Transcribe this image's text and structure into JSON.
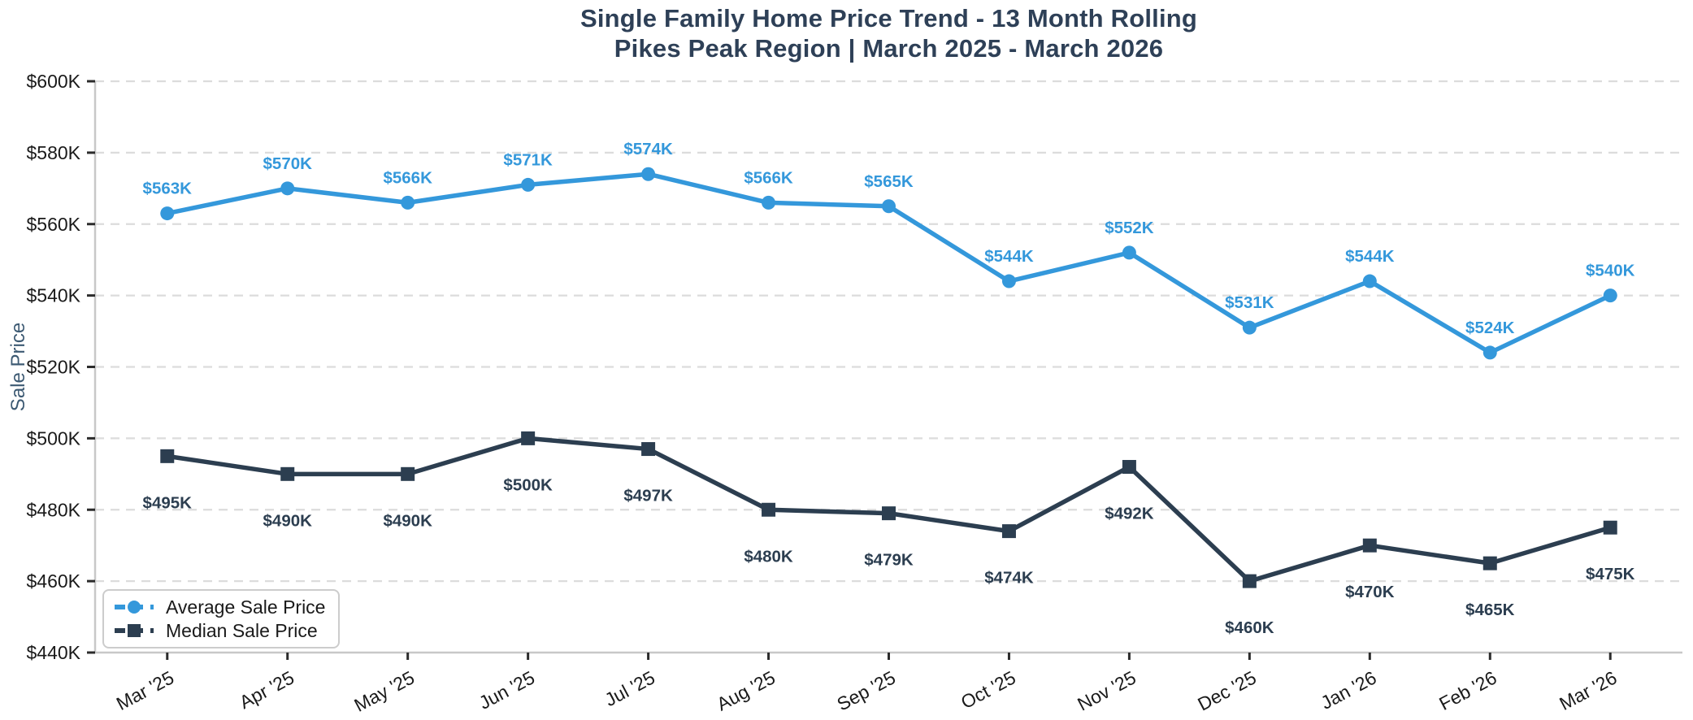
{
  "title": {
    "line1": "Single Family Home Price Trend - 13 Month Rolling",
    "line2": "Pikes Peak Region | March 2025 - March 2026"
  },
  "y_axis": {
    "label": "Sale Price",
    "tick_labels": [
      "$440K",
      "$460K",
      "$480K",
      "$500K",
      "$520K",
      "$540K",
      "$560K",
      "$580K",
      "$600K"
    ],
    "tick_values": [
      440,
      460,
      480,
      500,
      520,
      540,
      560,
      580,
      600
    ]
  },
  "x_axis": {
    "tick_labels": [
      "Mar '25",
      "Apr '25",
      "May '25",
      "Jun '25",
      "Jul '25",
      "Aug '25",
      "Sep '25",
      "Oct '25",
      "Nov '25",
      "Dec '25",
      "Jan '26",
      "Feb '26",
      "Mar '26"
    ]
  },
  "legend": {
    "entries": [
      "Average Sale Price",
      "Median Sale Price"
    ],
    "position": "lower-left"
  },
  "colors": {
    "average_series": "#3498db",
    "median_series": "#2c3e50",
    "title_text": "#2e4057",
    "axis_label_text": "#3d5a73",
    "tick_label_text": "#1a1a1a",
    "gridline": "#dcdcdc",
    "spine": "#c8c8c8",
    "tick_mark": "#2b2b2b",
    "background": "#ffffff"
  },
  "chart_data": {
    "type": "line",
    "title": "Single Family Home Price Trend - 13 Month Rolling | Pikes Peak Region | March 2025 - March 2026",
    "xlabel": "",
    "ylabel": "Sale Price",
    "units": "USD thousands",
    "ylim": [
      440,
      600
    ],
    "grid": "horizontal-dashed",
    "legend_position": "lower-left",
    "categories": [
      "Mar '25",
      "Apr '25",
      "May '25",
      "Jun '25",
      "Jul '25",
      "Aug '25",
      "Sep '25",
      "Oct '25",
      "Nov '25",
      "Dec '25",
      "Jan '26",
      "Feb '26",
      "Mar '26"
    ],
    "series": [
      {
        "name": "Average Sale Price",
        "color": "#3498db",
        "marker": "circle",
        "values": [
          563,
          570,
          566,
          571,
          574,
          566,
          565,
          544,
          552,
          531,
          544,
          524,
          540
        ],
        "point_labels": [
          "$563K",
          "$570K",
          "$566K",
          "$571K",
          "$574K",
          "$566K",
          "$565K",
          "$544K",
          "$552K",
          "$531K",
          "$544K",
          "$524K",
          "$540K"
        ],
        "label_placement": "above"
      },
      {
        "name": "Median Sale Price",
        "color": "#2c3e50",
        "marker": "square",
        "values": [
          495,
          490,
          490,
          500,
          497,
          480,
          479,
          474,
          492,
          460,
          470,
          465,
          475
        ],
        "point_labels": [
          "$495K",
          "$490K",
          "$490K",
          "$500K",
          "$497K",
          "$480K",
          "$479K",
          "$474K",
          "$492K",
          "$460K",
          "$470K",
          "$465K",
          "$475K"
        ],
        "label_placement": "below"
      }
    ]
  }
}
